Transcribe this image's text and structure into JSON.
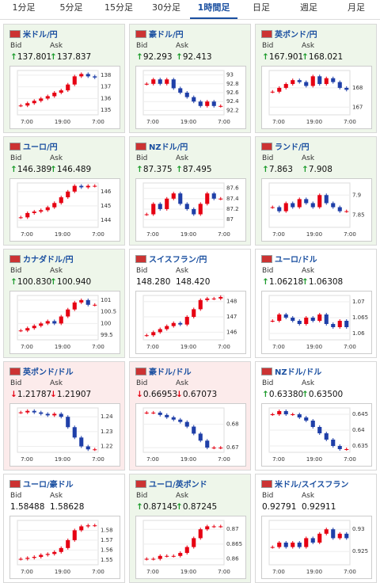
{
  "tabs": {
    "items": [
      "1分足",
      "5分足",
      "15分足",
      "30分足",
      "1時間足",
      "日足",
      "週足",
      "月足"
    ],
    "active": 4
  },
  "labels": {
    "bid": "Bid",
    "ask": "Ask",
    "x": [
      "7:00",
      "19:00",
      "7:00"
    ]
  },
  "colors": {
    "up": "#e60012",
    "down": "#1f3fa8",
    "up_bg": "#eef6ea",
    "down_bg": "#fcebeb",
    "none_bg": "#ffffff",
    "up_arrow": "#1a9a2a",
    "down_arrow": "#e60012"
  },
  "panels": [
    {
      "name": "米ドル/円",
      "bid": "137.801",
      "ask": "137.837",
      "direction": "up",
      "bg": "up",
      "ylim": [
        134.6,
        138.4
      ],
      "yticks": [
        135,
        136,
        137,
        138
      ],
      "values": [
        135.4,
        135.6,
        135.8,
        136.0,
        136.2,
        136.5,
        136.7,
        137.2,
        137.9,
        138.1,
        137.9,
        137.8
      ]
    },
    {
      "name": "豪ドル/円",
      "bid": "92.293",
      "ask": "92.413",
      "direction": "up",
      "bg": "up",
      "ylim": [
        92.1,
        93.1
      ],
      "yticks": [
        92.2,
        92.4,
        92.6,
        92.8,
        93
      ],
      "values": [
        92.8,
        92.9,
        92.8,
        92.9,
        92.7,
        92.6,
        92.5,
        92.4,
        92.3,
        92.4,
        92.3,
        92.3
      ]
    },
    {
      "name": "英ポンド/円",
      "bid": "167.901",
      "ask": "168.021",
      "direction": "up",
      "bg": "up",
      "ylim": [
        166.6,
        168.9
      ],
      "yticks": [
        167,
        168
      ],
      "values": [
        167.8,
        168.0,
        168.2,
        168.4,
        168.3,
        168.1,
        168.6,
        168.2,
        168.5,
        168.3,
        168.0,
        167.9
      ]
    },
    {
      "name": "ユーロ/円",
      "bid": "146.389",
      "ask": "146.489",
      "direction": "up",
      "bg": "up",
      "ylim": [
        143.5,
        146.6
      ],
      "yticks": [
        144,
        145,
        146
      ],
      "values": [
        144.2,
        144.5,
        144.6,
        144.7,
        144.9,
        145.2,
        145.6,
        146.0,
        146.4,
        146.3,
        146.4,
        146.4
      ]
    },
    {
      "name": "NZドル/円",
      "bid": "87.375",
      "ask": "87.495",
      "direction": "up",
      "bg": "up",
      "ylim": [
        86.85,
        87.7
      ],
      "yticks": [
        87,
        87.2,
        87.4,
        87.6
      ],
      "values": [
        87.1,
        87.3,
        87.2,
        87.4,
        87.5,
        87.3,
        87.2,
        87.1,
        87.3,
        87.5,
        87.4,
        87.4
      ]
    },
    {
      "name": "ランド/円",
      "bid": "7.863",
      "ask": "7.908",
      "direction": "up",
      "bg": "up",
      "ylim": [
        7.82,
        7.93
      ],
      "yticks": [
        7.85,
        7.9
      ],
      "values": [
        7.87,
        7.86,
        7.88,
        7.87,
        7.89,
        7.88,
        7.87,
        7.9,
        7.88,
        7.87,
        7.86,
        7.86
      ]
    },
    {
      "name": "カナダドル/円",
      "bid": "100.830",
      "ask": "100.940",
      "direction": "up",
      "bg": "up",
      "ylim": [
        99.3,
        101.2
      ],
      "yticks": [
        99.5,
        100,
        100.5,
        101
      ],
      "values": [
        99.7,
        99.8,
        99.9,
        100.0,
        100.1,
        100.0,
        100.3,
        100.6,
        100.9,
        101.0,
        100.8,
        100.8
      ]
    },
    {
      "name": "スイスフラン/円",
      "bid": "148.280",
      "ask": "148.420",
      "direction": "none",
      "bg": "none",
      "ylim": [
        145.5,
        148.4
      ],
      "yticks": [
        146,
        147,
        148
      ],
      "values": [
        145.8,
        146.0,
        146.2,
        146.4,
        146.6,
        146.5,
        147.0,
        147.5,
        148.1,
        148.2,
        148.2,
        148.3
      ]
    },
    {
      "name": "ユーロ/ドル",
      "bid": "1.06218",
      "ask": "1.06308",
      "direction": "up",
      "bg": "none",
      "ylim": [
        1.058,
        1.072
      ],
      "yticks": [
        1.06,
        1.065,
        1.07
      ],
      "values": [
        1.064,
        1.066,
        1.065,
        1.064,
        1.063,
        1.065,
        1.064,
        1.066,
        1.063,
        1.062,
        1.064,
        1.062
      ]
    },
    {
      "name": "英ポンド/ドル",
      "bid": "1.21787",
      "ask": "1.21907",
      "direction": "down",
      "bg": "down",
      "ylim": [
        1.216,
        1.246
      ],
      "yticks": [
        1.22,
        1.23,
        1.24
      ],
      "values": [
        1.243,
        1.244,
        1.243,
        1.242,
        1.241,
        1.242,
        1.24,
        1.233,
        1.226,
        1.22,
        1.218,
        1.218
      ]
    },
    {
      "name": "豪ドル/ドル",
      "bid": "0.66953",
      "ask": "0.67073",
      "direction": "down",
      "bg": "down",
      "ylim": [
        0.668,
        0.687
      ],
      "yticks": [
        0.67,
        0.68
      ],
      "values": [
        0.685,
        0.685,
        0.684,
        0.683,
        0.682,
        0.681,
        0.679,
        0.676,
        0.673,
        0.67,
        0.67,
        0.67
      ]
    },
    {
      "name": "NZドル/ドル",
      "bid": "0.63380",
      "ask": "0.63500",
      "direction": "up",
      "bg": "none",
      "ylim": [
        0.633,
        0.647
      ],
      "yticks": [
        0.635,
        0.64,
        0.645
      ],
      "values": [
        0.645,
        0.646,
        0.645,
        0.645,
        0.644,
        0.643,
        0.641,
        0.639,
        0.637,
        0.635,
        0.634,
        0.634
      ]
    },
    {
      "name": "ユーロ/豪ドル",
      "bid": "1.58488",
      "ask": "1.58628",
      "direction": "none",
      "bg": "none",
      "ylim": [
        1.545,
        1.59
      ],
      "yticks": [
        1.55,
        1.56,
        1.57,
        1.58
      ],
      "values": [
        1.551,
        1.552,
        1.553,
        1.555,
        1.556,
        1.558,
        1.562,
        1.57,
        1.58,
        1.584,
        1.585,
        1.585
      ]
    },
    {
      "name": "ユーロ/英ポンド",
      "bid": "0.87145",
      "ask": "0.87245",
      "direction": "up",
      "bg": "up",
      "ylim": [
        0.858,
        0.873
      ],
      "yticks": [
        0.86,
        0.865,
        0.87
      ],
      "values": [
        0.86,
        0.86,
        0.861,
        0.861,
        0.861,
        0.862,
        0.864,
        0.867,
        0.87,
        0.871,
        0.871,
        0.871
      ]
    },
    {
      "name": "米ドル/スイスフラン",
      "bid": "0.92791",
      "ask": "0.92911",
      "direction": "none",
      "bg": "none",
      "ylim": [
        0.922,
        0.932
      ],
      "yticks": [
        0.925,
        0.93
      ],
      "values": [
        0.926,
        0.927,
        0.926,
        0.927,
        0.926,
        0.928,
        0.927,
        0.929,
        0.93,
        0.928,
        0.929,
        0.928
      ]
    }
  ]
}
